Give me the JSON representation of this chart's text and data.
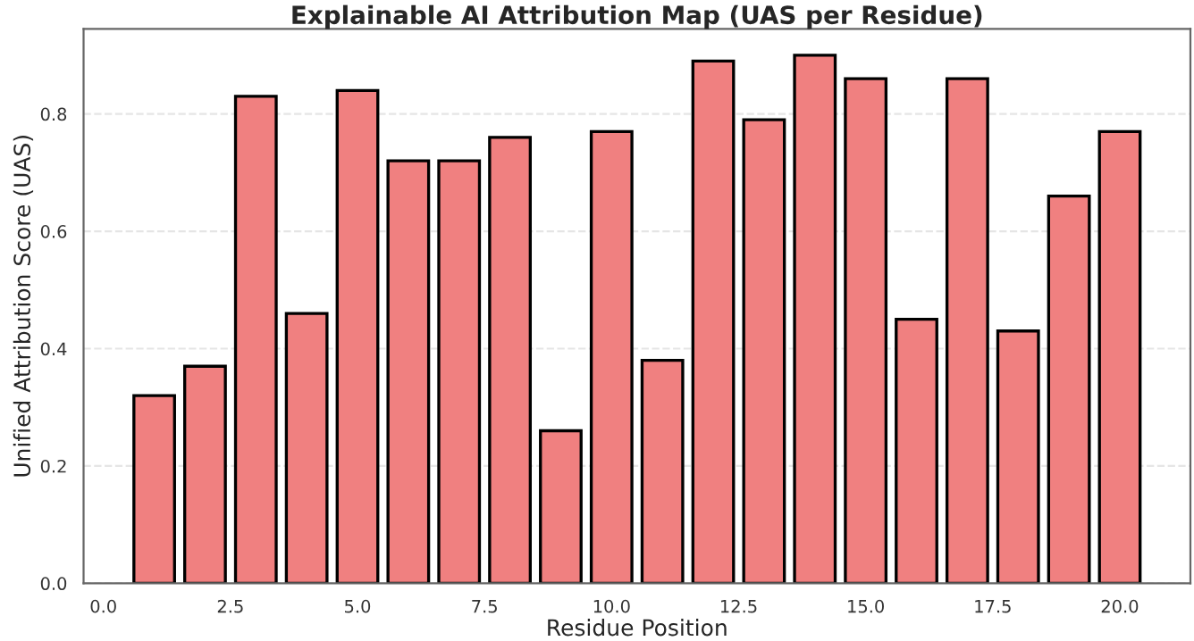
{
  "chart_data": {
    "type": "bar",
    "title": "Explainable AI Attribution Map (UAS per Residue)",
    "xlabel": "Residue Position",
    "ylabel": "Unified Attribution Score (UAS)",
    "x": [
      1,
      2,
      3,
      4,
      5,
      6,
      7,
      8,
      9,
      10,
      11,
      12,
      13,
      14,
      15,
      16,
      17,
      18,
      19,
      20
    ],
    "values": [
      0.32,
      0.37,
      0.83,
      0.46,
      0.84,
      0.72,
      0.72,
      0.76,
      0.26,
      0.77,
      0.38,
      0.89,
      0.79,
      0.9,
      0.86,
      0.45,
      0.86,
      0.43,
      0.66,
      0.77
    ],
    "color": "#f08080",
    "xlim": [
      -0.39,
      21.39
    ],
    "ylim": [
      0,
      0.945
    ],
    "xticks": [
      {
        "value": 0,
        "label": "0.0"
      },
      {
        "value": 2.5,
        "label": "2.5"
      },
      {
        "value": 5,
        "label": "5.0"
      },
      {
        "value": 7.5,
        "label": "7.5"
      },
      {
        "value": 10,
        "label": "10.0"
      },
      {
        "value": 12.5,
        "label": "12.5"
      },
      {
        "value": 15,
        "label": "15.0"
      },
      {
        "value": 17.5,
        "label": "17.5"
      },
      {
        "value": 20,
        "label": "20.0"
      }
    ],
    "yticks": [
      {
        "value": 0,
        "label": "0.0"
      },
      {
        "value": 0.2,
        "label": "0.2"
      },
      {
        "value": 0.4,
        "label": "0.4"
      },
      {
        "value": 0.6,
        "label": "0.6"
      },
      {
        "value": 0.8,
        "label": "0.8"
      }
    ],
    "grid": "y"
  }
}
